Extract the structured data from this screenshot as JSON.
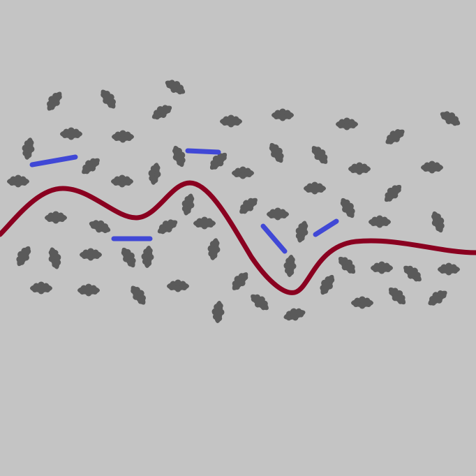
{
  "colors": {
    "background": "#c4c4c4",
    "blob": "#5a5a5a",
    "curve": "#8a0020",
    "segment": "#4048d6"
  }
}
